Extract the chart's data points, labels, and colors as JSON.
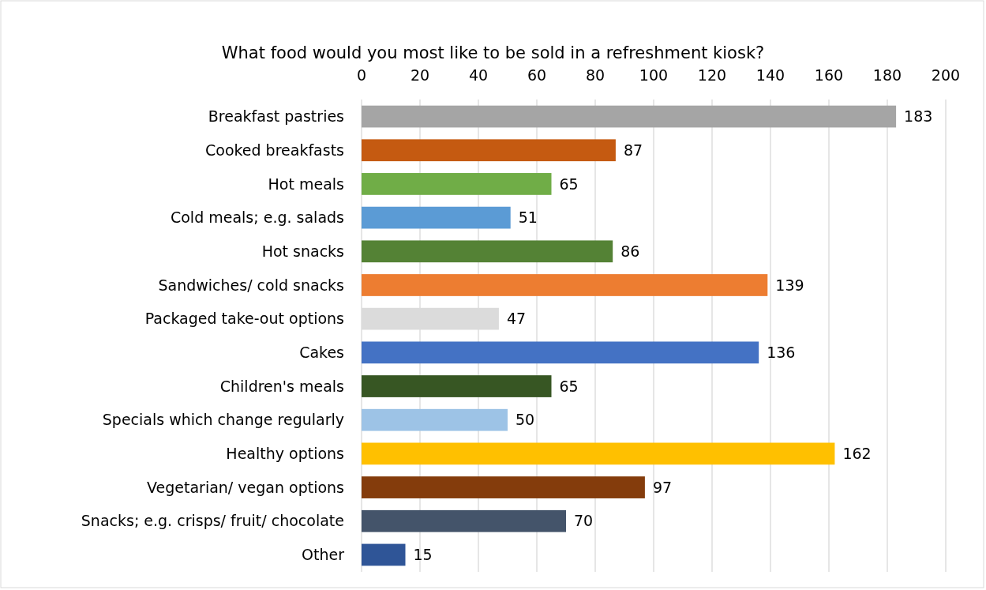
{
  "chart_data": {
    "type": "bar",
    "orientation": "horizontal",
    "title": "What food would you most like to be sold in a refreshment kiosk?",
    "categories": [
      "Breakfast pastries",
      "Cooked breakfasts",
      "Hot meals",
      "Cold meals; e.g. salads",
      "Hot snacks",
      "Sandwiches/ cold snacks",
      "Packaged take-out options",
      "Cakes",
      "Children's meals",
      "Specials which change regularly",
      "Healthy options",
      "Vegetarian/ vegan options",
      "Snacks; e.g. crisps/ fruit/ chocolate",
      "Other"
    ],
    "values": [
      183,
      87,
      65,
      51,
      86,
      139,
      47,
      136,
      65,
      50,
      162,
      97,
      70,
      15
    ],
    "colors": [
      "#a5a5a5",
      "#c55a11",
      "#70ad47",
      "#5b9bd5",
      "#548235",
      "#ed7d31",
      "#dbdbdb",
      "#4472c4",
      "#375623",
      "#9dc3e6",
      "#ffc000",
      "#843c0c",
      "#44546a",
      "#2f5597"
    ],
    "xlim": [
      0,
      200
    ],
    "xticks": [
      0,
      20,
      40,
      60,
      80,
      100,
      120,
      140,
      160,
      180,
      200
    ],
    "grid": "x",
    "data_labels": true
  }
}
